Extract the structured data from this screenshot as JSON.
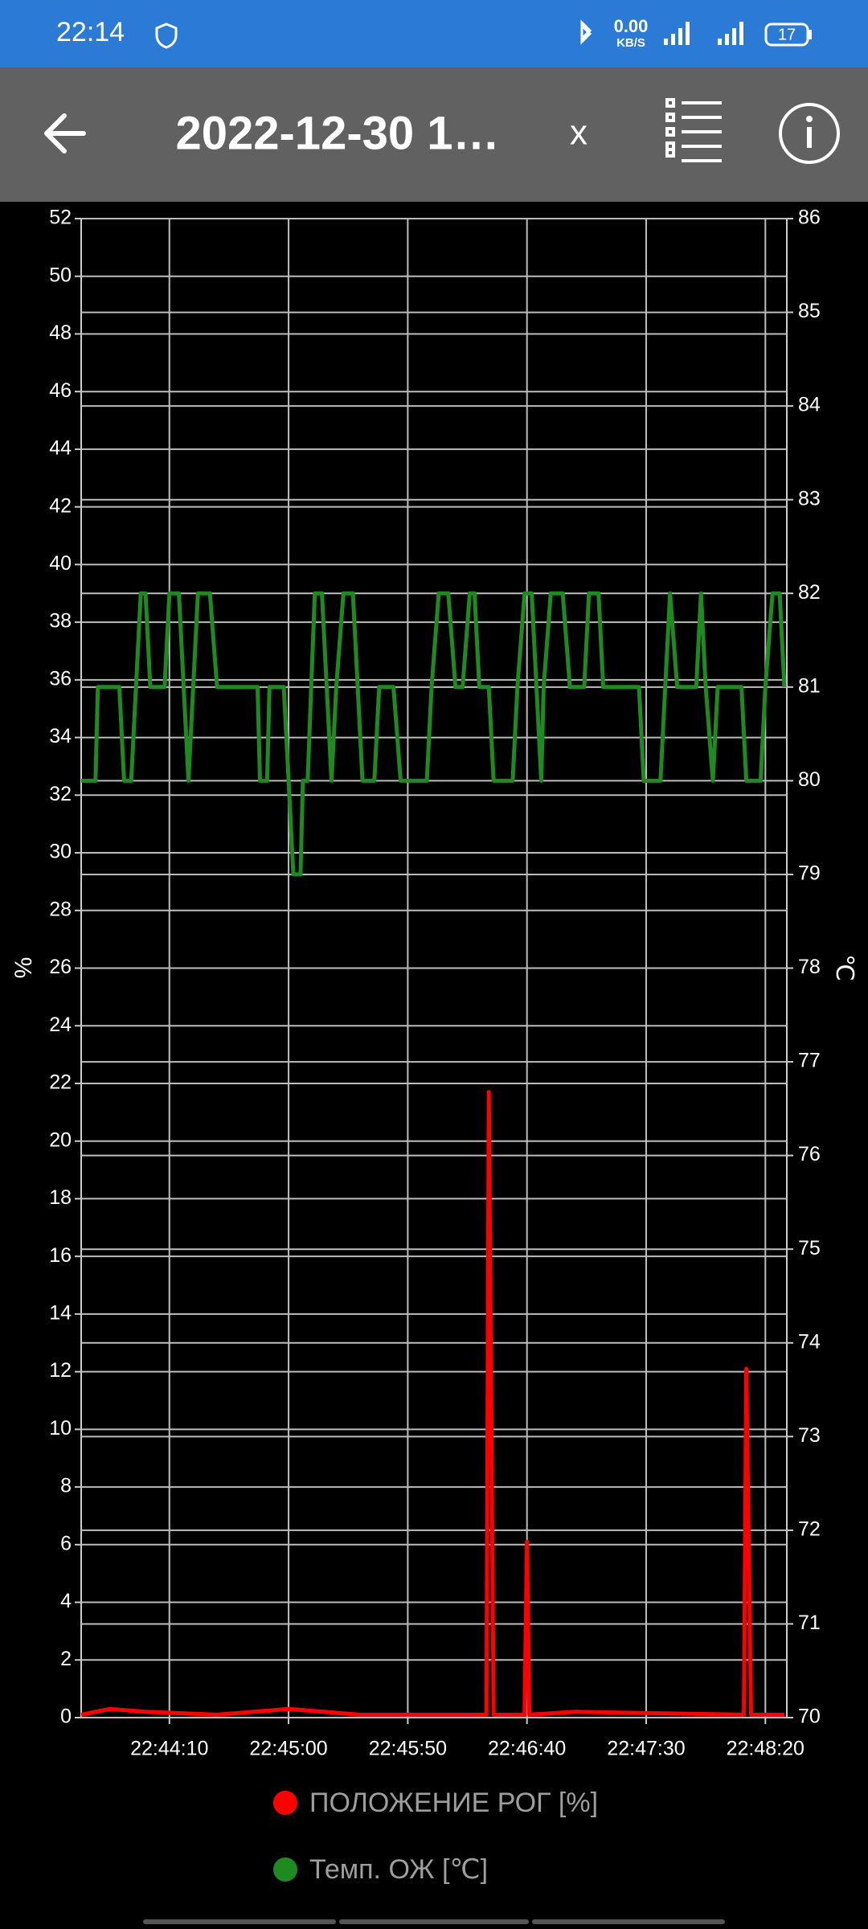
{
  "status_bar": {
    "time": "22:14",
    "net_speed": "0.00",
    "net_unit": "KB/S",
    "battery": "17"
  },
  "toolbar": {
    "title": "2022-12-30 1…",
    "close": "x"
  },
  "chart_data": {
    "type": "line",
    "y_label": "%",
    "y2_label": "℃",
    "xlim": [
      "22:43:33",
      "22:48:29"
    ],
    "xticks": [
      "22:44:10",
      "22:45:00",
      "22:45:50",
      "22:46:40",
      "22:47:30",
      "22:48:20"
    ],
    "ylim": [
      0,
      52
    ],
    "yticks": [
      0,
      2,
      4,
      6,
      8,
      10,
      12,
      14,
      16,
      18,
      20,
      22,
      24,
      26,
      28,
      30,
      32,
      34,
      36,
      38,
      40,
      42,
      44,
      46,
      48,
      50,
      52
    ],
    "y2lim": [
      70,
      86
    ],
    "y2ticks": [
      70,
      71,
      72,
      73,
      74,
      75,
      76,
      77,
      78,
      79,
      80,
      81,
      82,
      83,
      84,
      85,
      86
    ],
    "grid": true,
    "series": [
      {
        "name": "ПОЛОЖЕНИЕ РОГ [%]",
        "color": "#ff0000",
        "axis": "y",
        "x": [
          "22:43:33",
          "22:43:45",
          "22:44:00",
          "22:44:30",
          "22:45:00",
          "22:45:30",
          "22:46:23",
          "22:46:24",
          "22:46:26",
          "22:46:39",
          "22:46:40",
          "22:46:41",
          "22:47:00",
          "22:48:11",
          "22:48:12",
          "22:48:14",
          "22:48:28"
        ],
        "values": [
          0.1,
          0.3,
          0.2,
          0.1,
          0.3,
          0.1,
          0.1,
          21.7,
          0.1,
          0.1,
          6.1,
          0.1,
          0.2,
          0.1,
          12.1,
          0.1,
          0.1
        ]
      },
      {
        "name": "Темп. ОЖ [℃]",
        "color": "#1f8a1f",
        "axis": "y2",
        "x": [
          "22:43:33",
          "22:43:39",
          "22:43:40",
          "22:43:49",
          "22:43:51",
          "22:43:54",
          "22:43:56",
          "22:43:58",
          "22:44:00",
          "22:44:02",
          "22:44:08",
          "22:44:10",
          "22:44:14",
          "22:44:18",
          "22:44:22",
          "22:44:27",
          "22:44:30",
          "22:44:47",
          "22:44:48",
          "22:44:51",
          "22:44:52",
          "22:44:58",
          "22:45:00",
          "22:45:02",
          "22:45:05",
          "22:45:06",
          "22:45:08",
          "22:45:11",
          "22:45:14",
          "22:45:16",
          "22:45:18",
          "22:45:20",
          "22:45:23",
          "22:45:27",
          "22:45:29",
          "22:45:31",
          "22:45:36",
          "22:45:38",
          "22:45:44",
          "22:45:47",
          "22:45:58",
          "22:46:00",
          "22:46:03",
          "22:46:07",
          "22:46:10",
          "22:46:13",
          "22:46:16",
          "22:46:18",
          "22:46:20",
          "22:46:24",
          "22:46:26",
          "22:46:34",
          "22:46:36",
          "22:46:39",
          "22:46:42",
          "22:46:44",
          "22:46:46",
          "22:46:47",
          "22:46:50",
          "22:46:55",
          "22:46:58",
          "22:47:04",
          "22:47:06",
          "22:47:10",
          "22:47:12",
          "22:47:27",
          "22:47:29",
          "22:47:36",
          "22:47:38",
          "22:47:40",
          "22:47:43",
          "22:47:51",
          "22:47:53",
          "22:47:55",
          "22:47:58",
          "22:48:00",
          "22:48:10",
          "22:48:12",
          "22:48:18",
          "22:48:20",
          "22:48:23",
          "22:48:26",
          "22:48:28"
        ],
        "values": [
          80,
          80,
          81,
          81,
          80,
          80,
          81,
          82,
          82,
          81,
          81,
          82,
          82,
          80,
          82,
          82,
          81,
          81,
          80,
          80,
          81,
          81,
          80,
          79,
          79,
          80,
          80,
          82,
          82,
          81,
          80,
          81,
          82,
          82,
          81,
          80,
          80,
          81,
          81,
          80,
          80,
          81,
          82,
          82,
          81,
          81,
          82,
          82,
          81,
          81,
          80,
          80,
          81,
          82,
          82,
          81,
          80,
          81,
          82,
          82,
          81,
          81,
          82,
          82,
          81,
          81,
          80,
          80,
          81,
          82,
          81,
          81,
          82,
          81,
          80,
          81,
          81,
          80,
          80,
          81,
          82,
          82,
          81
        ]
      }
    ]
  }
}
